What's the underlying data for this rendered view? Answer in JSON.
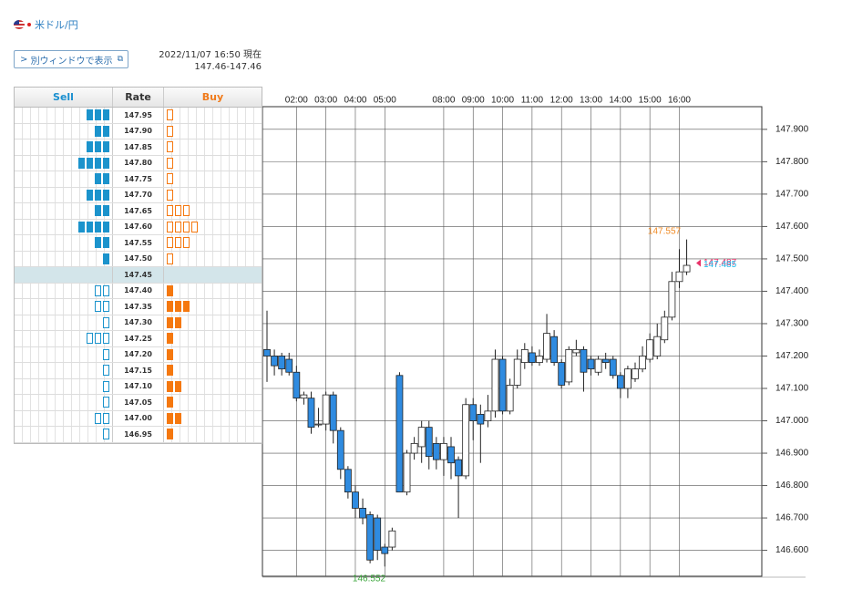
{
  "header": {
    "pair": "米ドル/円",
    "button": "別ウィンドウで表示",
    "timestamp": "2022/11/07 16:50 現在",
    "range": "147.46-147.46"
  },
  "order_book": {
    "columns": [
      "Sell",
      "Rate",
      "Buy"
    ],
    "rows": [
      {
        "rate": "147.95",
        "sell": 3,
        "buy": 1
      },
      {
        "rate": "147.90",
        "sell": 2,
        "buy": 1
      },
      {
        "rate": "147.85",
        "sell": 3,
        "buy": 1
      },
      {
        "rate": "147.80",
        "sell": 4,
        "buy": 1
      },
      {
        "rate": "147.75",
        "sell": 2,
        "buy": 1
      },
      {
        "rate": "147.70",
        "sell": 3,
        "buy": 1
      },
      {
        "rate": "147.65",
        "sell": 2,
        "buy": 3
      },
      {
        "rate": "147.60",
        "sell": 4,
        "buy": 4
      },
      {
        "rate": "147.55",
        "sell": 2,
        "buy": 3
      },
      {
        "rate": "147.50",
        "sell": 1,
        "buy": 1
      },
      {
        "rate": "147.45",
        "current": true
      },
      {
        "rate": "147.40",
        "sell": 2,
        "buy": 1
      },
      {
        "rate": "147.35",
        "sell": 2,
        "buy": 3
      },
      {
        "rate": "147.30",
        "sell": 1,
        "buy": 2
      },
      {
        "rate": "147.25",
        "sell": 3,
        "buy": 1
      },
      {
        "rate": "147.20",
        "sell": 1,
        "buy": 1
      },
      {
        "rate": "147.15",
        "sell": 1,
        "buy": 1
      },
      {
        "rate": "147.10",
        "sell": 1,
        "buy": 2
      },
      {
        "rate": "147.05",
        "sell": 1,
        "buy": 1
      },
      {
        "rate": "147.00",
        "sell": 2,
        "buy": 2
      },
      {
        "rate": "146.95",
        "sell": 1,
        "buy": 1
      }
    ]
  },
  "chart_data": {
    "type": "candlestick",
    "x": [
      null,
      null,
      null,
      null,
      "02:00",
      null,
      null,
      null,
      "03:00",
      null,
      null,
      null,
      "04:00",
      null,
      null,
      null,
      "05:00",
      null,
      null,
      null,
      null,
      null,
      null,
      null,
      "08:00",
      null,
      null,
      null,
      "09:00",
      null,
      null,
      null,
      "10:00",
      null,
      null,
      null,
      "11:00",
      null,
      null,
      null,
      "12:00",
      null,
      null,
      null,
      "13:00",
      null,
      null,
      null,
      "14:00",
      null,
      null,
      null,
      "15:00",
      null,
      null,
      null,
      "16:00",
      null
    ],
    "open": [
      147.22,
      147.2,
      147.2,
      147.19,
      147.15,
      147.07,
      147.07,
      146.99,
      146.99,
      147.08,
      146.97,
      146.85,
      146.78,
      146.73,
      146.71,
      146.7,
      146.61,
      146.61,
      147.14,
      146.78,
      146.9,
      146.92,
      146.98,
      146.93,
      146.88,
      146.92,
      146.88,
      146.83,
      147.05,
      147.02,
      147.0,
      147.03,
      147.19,
      147.03,
      147.11,
      147.18,
      147.21,
      147.18,
      147.19,
      147.26,
      147.18,
      147.12,
      147.21,
      147.22,
      147.19,
      147.15,
      147.19,
      147.19,
      147.14,
      147.1,
      147.13,
      147.16,
      147.19,
      147.2,
      147.25,
      147.32,
      147.43,
      147.46
    ],
    "high": [
      147.34,
      147.22,
      147.21,
      147.21,
      147.17,
      147.09,
      147.09,
      147.04,
      147.09,
      147.09,
      146.98,
      146.86,
      146.8,
      146.76,
      146.72,
      146.71,
      146.62,
      146.67,
      147.15,
      146.91,
      146.95,
      147.0,
      147.0,
      146.95,
      146.95,
      146.95,
      146.89,
      147.07,
      147.07,
      147.05,
      147.08,
      147.22,
      147.2,
      147.13,
      147.22,
      147.24,
      147.23,
      147.22,
      147.33,
      147.28,
      147.19,
      147.23,
      147.25,
      147.23,
      147.2,
      147.2,
      147.21,
      147.2,
      147.15,
      147.17,
      147.18,
      147.23,
      147.27,
      147.3,
      147.34,
      147.46,
      147.53,
      147.56
    ],
    "low": [
      147.12,
      147.14,
      147.14,
      147.14,
      147.06,
      147.05,
      146.96,
      146.98,
      146.97,
      146.93,
      146.82,
      146.76,
      146.7,
      146.68,
      146.56,
      146.57,
      146.55,
      146.6,
      146.78,
      146.77,
      146.88,
      146.87,
      146.85,
      146.85,
      146.83,
      146.82,
      146.7,
      146.82,
      146.94,
      146.87,
      146.98,
      147.01,
      147.02,
      147.02,
      147.1,
      147.16,
      147.17,
      147.17,
      147.18,
      147.17,
      147.1,
      147.11,
      147.2,
      147.09,
      147.14,
      147.14,
      147.16,
      147.13,
      147.07,
      147.07,
      147.12,
      147.15,
      147.18,
      147.19,
      147.24,
      147.31,
      147.41,
      147.45
    ],
    "close": [
      147.2,
      147.17,
      147.16,
      147.15,
      147.07,
      147.08,
      146.98,
      146.99,
      147.08,
      146.97,
      146.85,
      146.78,
      146.73,
      146.7,
      146.57,
      146.6,
      146.59,
      146.66,
      146.78,
      146.9,
      146.93,
      146.98,
      146.89,
      146.88,
      146.93,
      146.87,
      146.83,
      147.05,
      147.0,
      146.99,
      147.03,
      147.19,
      147.03,
      147.11,
      147.19,
      147.22,
      147.18,
      147.2,
      147.27,
      147.18,
      147.11,
      147.22,
      147.22,
      147.15,
      147.16,
      147.19,
      147.18,
      147.14,
      147.1,
      147.16,
      147.16,
      147.2,
      147.25,
      147.26,
      147.32,
      147.43,
      147.46,
      147.48
    ],
    "up_color": "#ffffff",
    "down_color": "#2f8be0",
    "ylim": [
      146.52,
      147.97
    ],
    "yticks": [
      {
        "value": 146.6,
        "label": "146.600"
      },
      {
        "value": 146.7,
        "label": "146.700"
      },
      {
        "value": 146.8,
        "label": "146.800"
      },
      {
        "value": 146.9,
        "label": "146.900"
      },
      {
        "value": 147.0,
        "label": "147.000"
      },
      {
        "value": 147.1,
        "label": "147.100"
      },
      {
        "value": 147.2,
        "label": "147.200"
      },
      {
        "value": 147.3,
        "label": "147.300"
      },
      {
        "value": 147.4,
        "label": "147.400"
      },
      {
        "value": 147.5,
        "label": "147.500"
      },
      {
        "value": 147.6,
        "label": "147.600"
      },
      {
        "value": 147.7,
        "label": "147.700"
      },
      {
        "value": 147.8,
        "label": "147.800"
      },
      {
        "value": 147.9,
        "label": "147.900"
      }
    ],
    "annotations": [
      {
        "value": 147.557,
        "label": "147.557",
        "color": "#f08a24"
      },
      {
        "value": 147.487,
        "label": "147.487",
        "color": "#e8336a"
      },
      {
        "value": 147.485,
        "label": "147.485",
        "color": "#1fb6e8"
      },
      {
        "value": 146.552,
        "label": "146.552",
        "color": "#3aa53a"
      }
    ],
    "grid": true
  }
}
